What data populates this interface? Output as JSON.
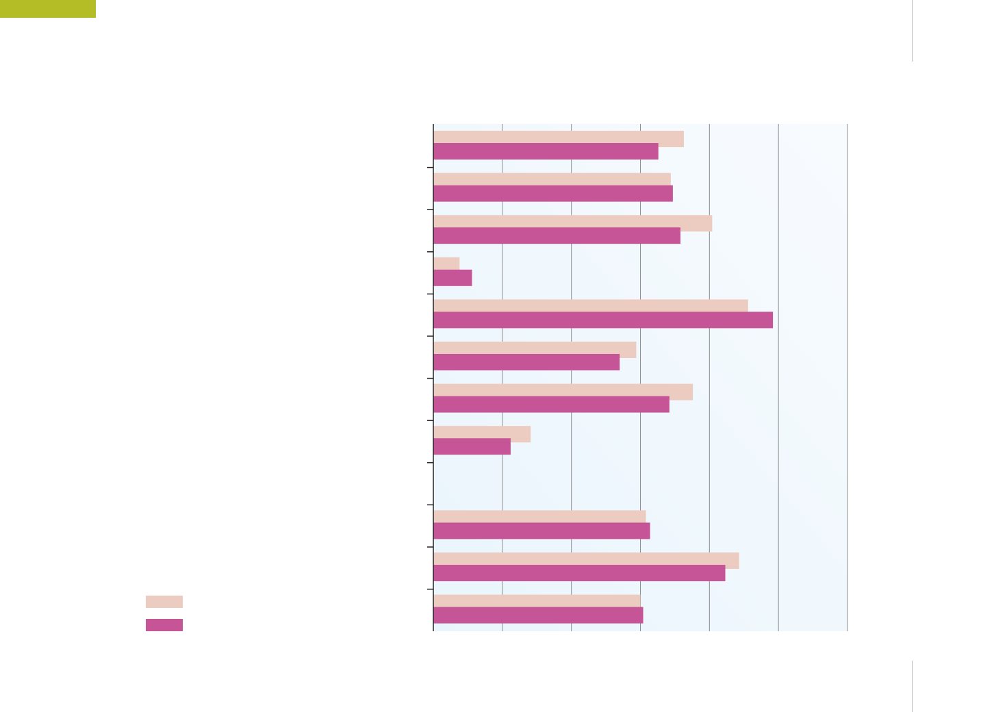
{
  "colors": {
    "accent": "#b5bd26",
    "series_1": "#ecccc0",
    "series_2": "#c65598",
    "plot_background_left": "#e9f5fc",
    "plot_background_right": "#f8fbfe",
    "gridline": "#8d8d8d",
    "axis": "#222222"
  },
  "chart_data": {
    "type": "bar",
    "orientation": "horizontal",
    "xlim": [
      0,
      6
    ],
    "grid": true,
    "gridlines_x": [
      1,
      2,
      3,
      4,
      5,
      6
    ],
    "categories": [
      "",
      "",
      "",
      "",
      "",
      "",
      "",
      "",
      "",
      "",
      "",
      ""
    ],
    "series": [
      {
        "color": "#ecccc0",
        "values": [
          3.63,
          3.44,
          4.04,
          0.38,
          4.56,
          2.94,
          3.76,
          1.41,
          null,
          3.08,
          4.43,
          3.0
        ]
      },
      {
        "color": "#c65598",
        "values": [
          3.26,
          3.47,
          3.58,
          0.56,
          4.92,
          2.7,
          3.42,
          1.12,
          null,
          3.14,
          4.23,
          3.04
        ]
      }
    ],
    "legend": {
      "placement": "bottom-left",
      "entries": [
        {
          "color": "#ecccc0"
        },
        {
          "color": "#c65598"
        }
      ]
    }
  }
}
